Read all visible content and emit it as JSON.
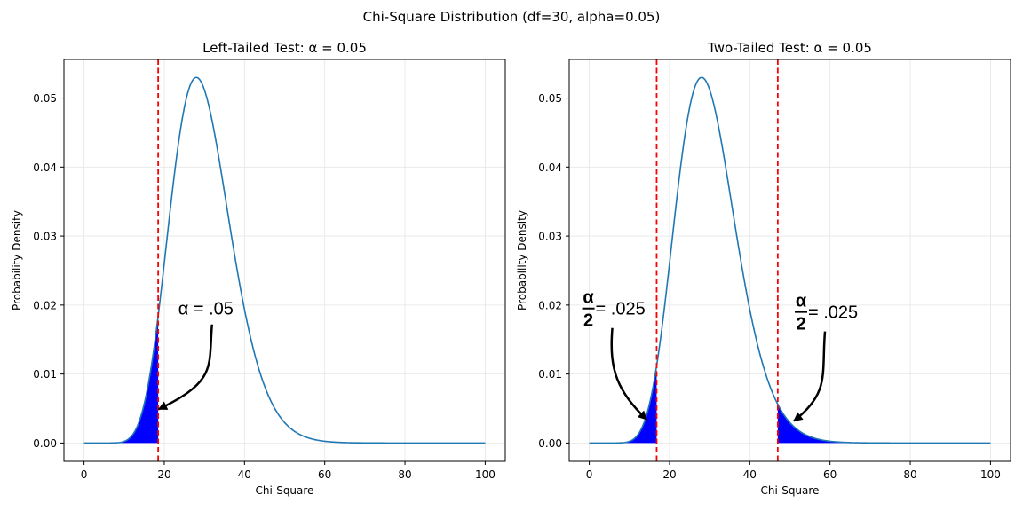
{
  "figure": {
    "suptitle": "Chi-Square Distribution (df=30, alpha=0.05)"
  },
  "colors": {
    "curve": "#1f77b4",
    "fill": "#0000ff",
    "critical_line": "#ff0000",
    "grid": "#e6e6e6"
  },
  "chart_data": [
    {
      "type": "line",
      "distribution": "chi-square",
      "df": 30,
      "title": "Left-Tailed Test: α = 0.05",
      "xlabel": "Chi-Square",
      "ylabel": "Probability Density",
      "xlim": [
        -5,
        105
      ],
      "ylim": [
        -0.00265,
        0.0556
      ],
      "xticks": [
        0,
        20,
        40,
        60,
        80,
        100
      ],
      "yticks": [
        0.0,
        0.01,
        0.02,
        0.03,
        0.04,
        0.05
      ],
      "ytick_labels": [
        "0.00",
        "0.01",
        "0.02",
        "0.03",
        "0.04",
        "0.05"
      ],
      "x_range": [
        0,
        100
      ],
      "grid": true,
      "critical_values": [
        18.49
      ],
      "shaded_regions": [
        [
          0,
          18.49
        ]
      ],
      "annotations": [
        {
          "text": "α = .05",
          "text_at": [
            23.5,
            0.0195
          ],
          "arrow_to": [
            18.6,
            0.0049
          ]
        }
      ]
    },
    {
      "type": "line",
      "distribution": "chi-square",
      "df": 30,
      "title": "Two-Tailed Test: α = 0.05",
      "xlabel": "Chi-Square",
      "ylabel": "Probability Density",
      "xlim": [
        -5,
        105
      ],
      "ylim": [
        -0.00265,
        0.0556
      ],
      "xticks": [
        0,
        20,
        40,
        60,
        80,
        100
      ],
      "yticks": [
        0.0,
        0.01,
        0.02,
        0.03,
        0.04,
        0.05
      ],
      "ytick_labels": [
        "0.00",
        "0.01",
        "0.02",
        "0.03",
        "0.04",
        "0.05"
      ],
      "x_range": [
        0,
        100
      ],
      "grid": true,
      "critical_values": [
        16.79,
        46.98
      ],
      "shaded_regions": [
        [
          0,
          16.79
        ],
        [
          46.98,
          100
        ]
      ],
      "annotations": [
        {
          "numerator": "α",
          "denominator": "2",
          "text": "= .025",
          "text_at": [
            -2,
            0.0195
          ],
          "arrow_to": [
            14.3,
            0.0034
          ]
        },
        {
          "numerator": "α",
          "denominator": "2",
          "text": "= .025",
          "text_at": [
            51,
            0.019
          ],
          "arrow_to": [
            51.0,
            0.0032
          ]
        }
      ]
    }
  ]
}
